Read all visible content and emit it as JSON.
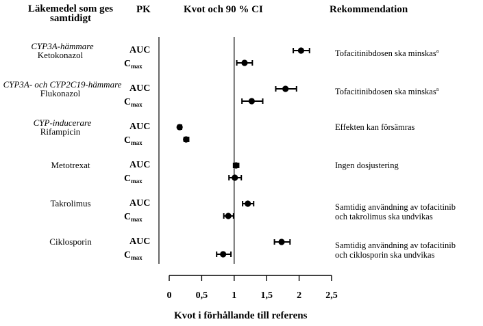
{
  "headers": {
    "drug": "Läkemedel som ges samtidigt",
    "pk": "PK",
    "ratio": "Kvot och 90 % CI",
    "recommendation": "Rekommendation"
  },
  "chart_data": {
    "type": "forest",
    "xlabel": "Kvot i förhållande till referens",
    "xlim": [
      0,
      2.5
    ],
    "reference_line": 1,
    "ticks": [
      0,
      0.5,
      1,
      1.5,
      2,
      2.5
    ],
    "tick_labels": [
      "0",
      "0,5",
      "1",
      "1,5",
      "2",
      "2,5"
    ],
    "metric_labels": {
      "auc": "AUC",
      "cmax_main": "C",
      "cmax_sub": "max"
    },
    "groups": [
      {
        "drug": "Ketokonazol",
        "drug_class": "CYP3A-hämmare",
        "rows": [
          {
            "metric": "AUC",
            "ratio": 2.03,
            "ci": [
              1.91,
              2.16
            ]
          },
          {
            "metric": "Cmax",
            "ratio": 1.16,
            "ci": [
              1.04,
              1.28
            ]
          }
        ],
        "recommendation": [
          "Tofacitinibdosen ska minskas"
        ],
        "rec_superscript": "a"
      },
      {
        "drug": "Flukonazol",
        "drug_class": "CYP3A- och CYP2C19-hämmare",
        "rows": [
          {
            "metric": "AUC",
            "ratio": 1.79,
            "ci": [
              1.64,
              1.96
            ]
          },
          {
            "metric": "Cmax",
            "ratio": 1.27,
            "ci": [
              1.12,
              1.44
            ]
          }
        ],
        "recommendation": [
          "Tofacitinibdosen ska minskas"
        ],
        "rec_superscript": "a"
      },
      {
        "drug": "Rifampicin",
        "drug_class": "CYP-inducerare",
        "rows": [
          {
            "metric": "AUC",
            "ratio": 0.16,
            "ci": [
              0.14,
              0.19
            ]
          },
          {
            "metric": "Cmax",
            "ratio": 0.26,
            "ci": [
              0.23,
              0.3
            ]
          }
        ],
        "recommendation": [
          "Effekten kan försämras"
        ],
        "rec_superscript": ""
      },
      {
        "drug": "Metotrexat",
        "drug_class": "",
        "rows": [
          {
            "metric": "AUC",
            "ratio": 1.03,
            "ci": [
              0.99,
              1.07
            ]
          },
          {
            "metric": "Cmax",
            "ratio": 1.01,
            "ci": [
              0.92,
              1.11
            ]
          }
        ],
        "recommendation": [
          "Ingen dosjustering"
        ],
        "rec_superscript": ""
      },
      {
        "drug": "Takrolimus",
        "drug_class": "",
        "rows": [
          {
            "metric": "AUC",
            "ratio": 1.21,
            "ci": [
              1.13,
              1.3
            ]
          },
          {
            "metric": "Cmax",
            "ratio": 0.91,
            "ci": [
              0.84,
              0.99
            ]
          }
        ],
        "recommendation": [
          "Samtidig användning av tofacitinib",
          "och takrolimus ska undvikas"
        ],
        "rec_superscript": ""
      },
      {
        "drug": "Ciklosporin",
        "drug_class": "",
        "rows": [
          {
            "metric": "AUC",
            "ratio": 1.73,
            "ci": [
              1.62,
              1.86
            ]
          },
          {
            "metric": "Cmax",
            "ratio": 0.83,
            "ci": [
              0.73,
              0.95
            ]
          }
        ],
        "recommendation": [
          "Samtidig användning av tofacitinib",
          "och ciklosporin ska undvikas"
        ],
        "rec_superscript": ""
      }
    ]
  }
}
